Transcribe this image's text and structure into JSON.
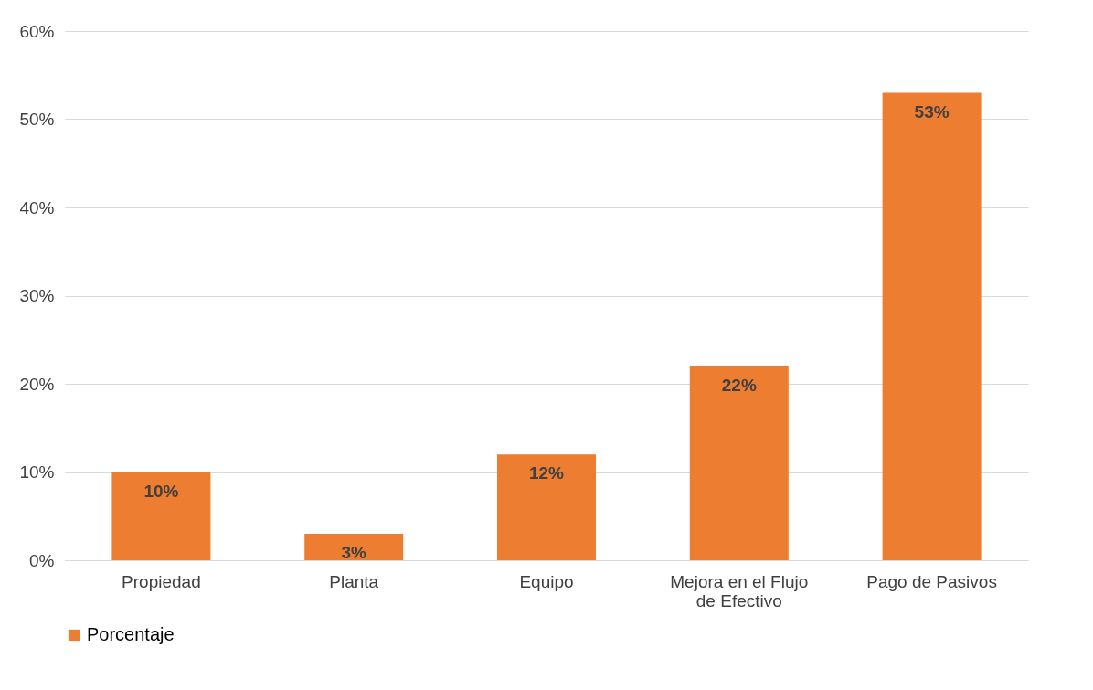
{
  "chart_data": {
    "type": "bar",
    "categories": [
      "Propiedad",
      "Planta",
      "Equipo",
      "Mejora en el Flujo de Efectivo",
      "Pago de Pasivos"
    ],
    "series": [
      {
        "name": "Porcentaje",
        "color": "#ed7d31",
        "values": [
          10,
          3,
          12,
          22,
          53
        ],
        "value_labels": [
          "10%",
          "3%",
          "12%",
          "22%",
          "53%"
        ]
      }
    ],
    "ylim": [
      0,
      60
    ],
    "yticks": [
      {
        "value": 0,
        "label": "0%"
      },
      {
        "value": 10,
        "label": "10%"
      },
      {
        "value": 20,
        "label": "20%"
      },
      {
        "value": 30,
        "label": "30%"
      },
      {
        "value": 40,
        "label": "40%"
      },
      {
        "value": 50,
        "label": "50%"
      },
      {
        "value": 60,
        "label": "60%"
      }
    ],
    "grid": "y",
    "legend": "bottom"
  }
}
